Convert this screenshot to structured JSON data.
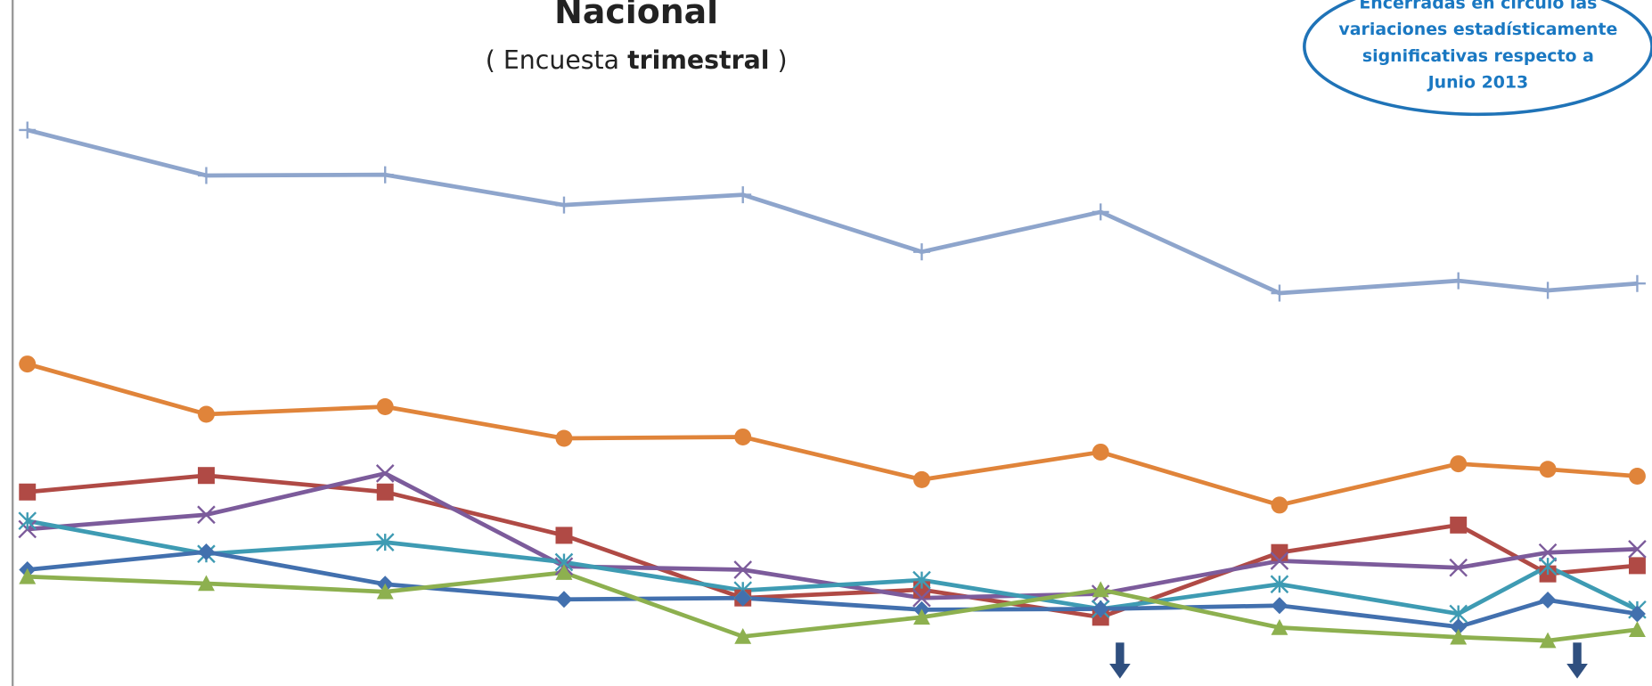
{
  "chart_data": {
    "type": "line",
    "title": "Nacional",
    "subtitle": [
      "( Encuesta ",
      "trimestral",
      " )"
    ],
    "annotation": [
      "Encerradas en círculo las",
      "variaciones estadísticamente",
      "significativas respecto  a",
      "Junio 2013"
    ],
    "x": [
      0,
      1,
      2,
      3,
      4,
      5,
      6,
      7,
      8,
      8.5,
      9
    ],
    "xlim": [
      0,
      9
    ],
    "ylim": [
      0,
      100
    ],
    "series": [
      {
        "color": "#8ea5cc",
        "marker": "plus",
        "values": [
          81.1,
          74.5,
          74.6,
          70.2,
          71.7,
          63.4,
          69.2,
          57.4,
          59.2,
          57.8,
          58.8
        ]
      },
      {
        "color": "#e0843a",
        "marker": "circle",
        "values": [
          47.1,
          39.8,
          40.9,
          36.3,
          36.5,
          30.3,
          34.3,
          26.6,
          32.6,
          31.8,
          30.8
        ]
      },
      {
        "color": "#b04a45",
        "marker": "square",
        "values": [
          28.5,
          30.9,
          28.5,
          22.2,
          13.1,
          14.3,
          10.3,
          19.7,
          23.7,
          16.6,
          17.8
        ]
      },
      {
        "color": "#7c5b9b",
        "marker": "cross",
        "values": [
          23.1,
          25.2,
          31.2,
          17.7,
          17.2,
          13.1,
          13.7,
          18.5,
          17.5,
          19.7,
          20.2
        ]
      },
      {
        "color": "#3e9bb3",
        "marker": "star",
        "values": [
          24.3,
          19.5,
          21.2,
          18.3,
          14.2,
          15.7,
          11.5,
          15.1,
          10.8,
          17.7,
          11.4
        ]
      },
      {
        "color": "#4270ae",
        "marker": "diamond",
        "values": [
          17.2,
          19.8,
          15.1,
          12.9,
          13.1,
          11.4,
          11.5,
          12.0,
          8.9,
          12.8,
          10.8
        ]
      },
      {
        "color": "#8db04f",
        "marker": "triangle",
        "values": [
          16.2,
          15.2,
          14.0,
          16.8,
          7.5,
          10.3,
          14.3,
          8.8,
          7.4,
          6.9,
          8.5
        ]
      }
    ]
  }
}
